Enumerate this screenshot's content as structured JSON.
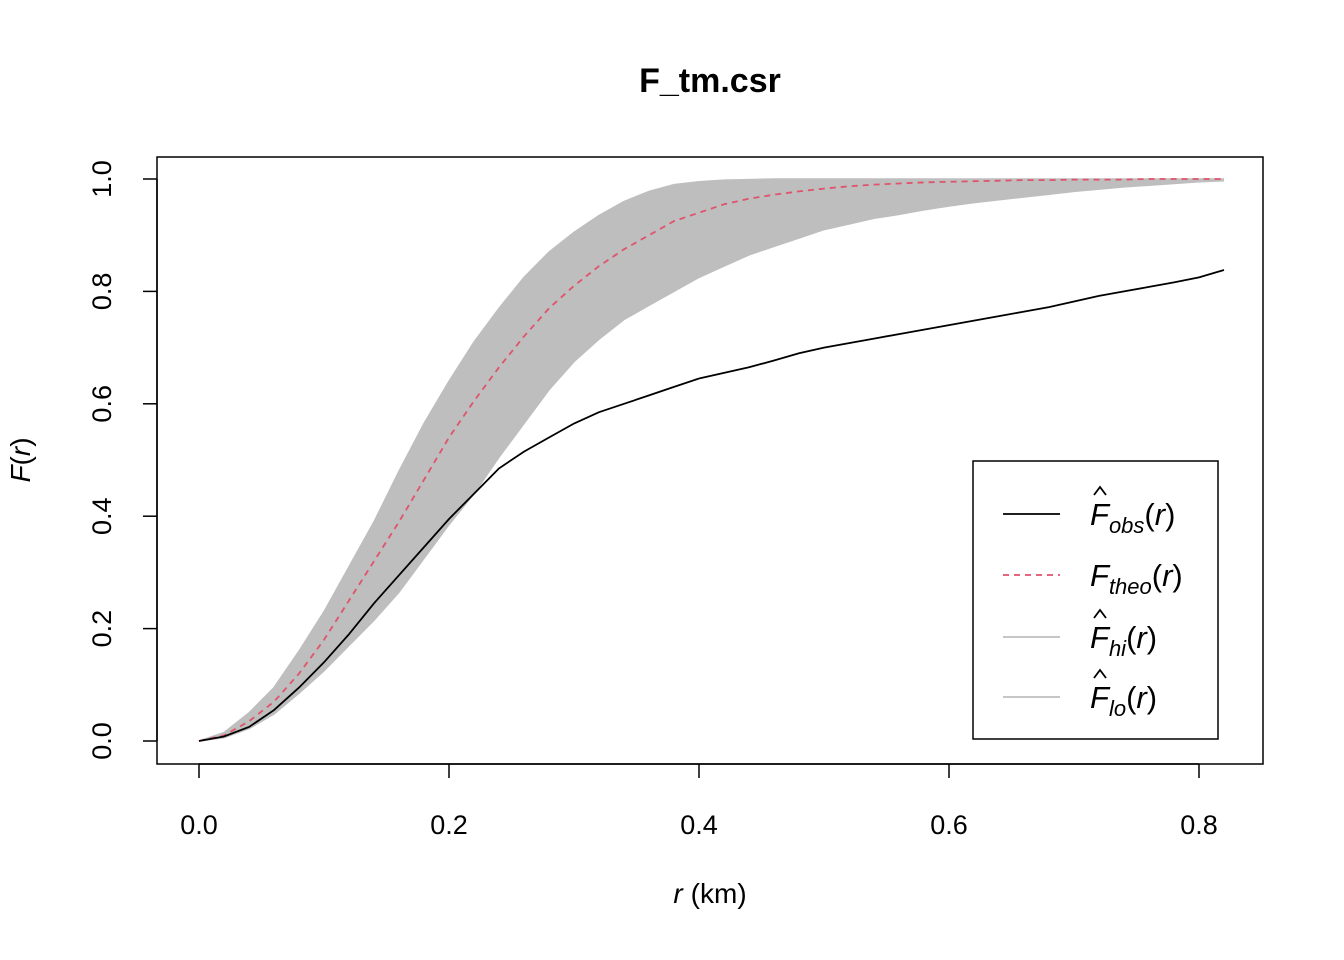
{
  "chart_data": {
    "type": "line",
    "title": "F_tm.csr",
    "xlabel": {
      "var": "r",
      "unit": "(km)"
    },
    "ylabel": {
      "name": "F",
      "arg": "r"
    },
    "xlim": [
      0,
      0.82
    ],
    "ylim": [
      0,
      1.0
    ],
    "x_ticks": [
      "0.0",
      "0.2",
      "0.4",
      "0.6",
      "0.8"
    ],
    "y_ticks": [
      "0.0",
      "0.2",
      "0.4",
      "0.6",
      "0.8",
      "1.0"
    ],
    "legend_position": "bottom-right",
    "x": [
      0,
      0.02,
      0.04,
      0.06,
      0.08,
      0.1,
      0.12,
      0.14,
      0.16,
      0.18,
      0.2,
      0.22,
      0.24,
      0.26,
      0.28,
      0.3,
      0.32,
      0.34,
      0.36,
      0.38,
      0.4,
      0.42,
      0.44,
      0.46,
      0.48,
      0.5,
      0.52,
      0.54,
      0.56,
      0.58,
      0.6,
      0.62,
      0.64,
      0.66,
      0.68,
      0.7,
      0.72,
      0.74,
      0.76,
      0.78,
      0.8,
      0.82
    ],
    "series": [
      {
        "name": "obs",
        "label": {
          "sym": "F",
          "sub": "obs",
          "hat": true
        },
        "color": "#000000",
        "dash": "solid",
        "values": [
          0,
          0.008,
          0.025,
          0.055,
          0.095,
          0.14,
          0.19,
          0.245,
          0.295,
          0.345,
          0.395,
          0.44,
          0.485,
          0.515,
          0.54,
          0.565,
          0.585,
          0.6,
          0.615,
          0.63,
          0.645,
          0.655,
          0.665,
          0.677,
          0.69,
          0.7,
          0.708,
          0.716,
          0.724,
          0.732,
          0.74,
          0.748,
          0.756,
          0.764,
          0.772,
          0.782,
          0.792,
          0.8,
          0.808,
          0.816,
          0.825,
          0.838
        ]
      },
      {
        "name": "theo",
        "label": {
          "sym": "F",
          "sub": "theo",
          "hat": false
        },
        "color": "#df536b",
        "dash": "dashed",
        "values": [
          0,
          0.01,
          0.035,
          0.07,
          0.12,
          0.18,
          0.25,
          0.32,
          0.39,
          0.465,
          0.54,
          0.605,
          0.665,
          0.72,
          0.77,
          0.81,
          0.845,
          0.875,
          0.9,
          0.925,
          0.94,
          0.955,
          0.965,
          0.972,
          0.978,
          0.983,
          0.987,
          0.99,
          0.992,
          0.994,
          0.995,
          0.996,
          0.997,
          0.998,
          0.998,
          0.999,
          0.999,
          0.999,
          1.0,
          1.0,
          1.0,
          1.0
        ]
      },
      {
        "name": "hi",
        "label": {
          "sym": "F",
          "sub": "hi",
          "hat": true
        },
        "color": "#bebebe",
        "dash": "solid",
        "values": [
          0,
          0.015,
          0.05,
          0.095,
          0.16,
          0.23,
          0.31,
          0.39,
          0.48,
          0.565,
          0.64,
          0.71,
          0.77,
          0.825,
          0.87,
          0.905,
          0.935,
          0.96,
          0.978,
          0.99,
          0.995,
          0.998,
          0.999,
          1.0,
          1.0,
          1.0,
          1.0,
          1.0,
          1.0,
          1.0,
          1.0,
          1.0,
          1.0,
          1.0,
          1.0,
          1.0,
          1.0,
          1.0,
          1.0,
          1.0,
          1.0,
          1.0
        ]
      },
      {
        "name": "lo",
        "label": {
          "sym": "F",
          "sub": "lo",
          "hat": true
        },
        "color": "#bebebe",
        "dash": "solid",
        "values": [
          0,
          0.006,
          0.022,
          0.048,
          0.085,
          0.125,
          0.17,
          0.215,
          0.265,
          0.325,
          0.385,
          0.44,
          0.505,
          0.565,
          0.625,
          0.675,
          0.715,
          0.75,
          0.775,
          0.8,
          0.825,
          0.845,
          0.865,
          0.88,
          0.895,
          0.91,
          0.92,
          0.93,
          0.937,
          0.945,
          0.952,
          0.958,
          0.963,
          0.968,
          0.973,
          0.978,
          0.982,
          0.986,
          0.989,
          0.992,
          0.995,
          0.997
        ]
      }
    ]
  }
}
